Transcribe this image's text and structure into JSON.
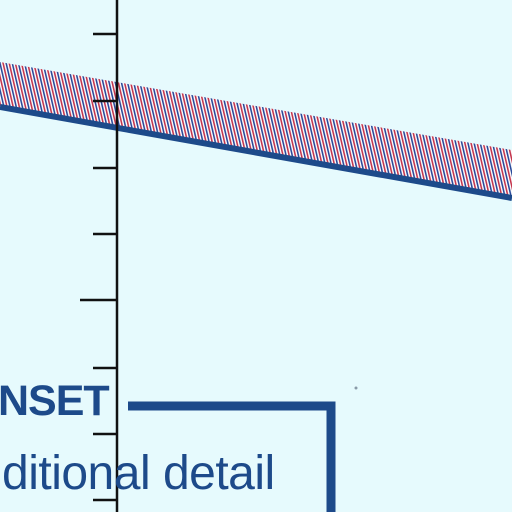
{
  "inset": {
    "title": "NSET",
    "subtitle": "ditional detail"
  },
  "colors": {
    "background": "#e6fafd",
    "boundary_blue": "#1d4a8a",
    "hatch_red": "#c4364e",
    "hatch_blue": "#2a4a9a",
    "scale_black": "#111111"
  },
  "icons": {
    "band": "hatched-boundary-band",
    "scale": "tick-scale-bar"
  }
}
